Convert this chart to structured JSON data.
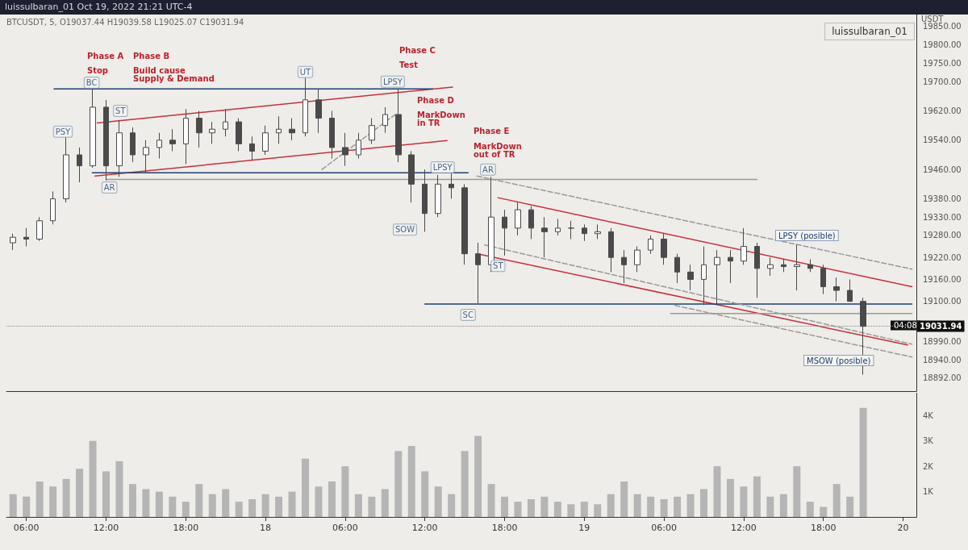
{
  "chart_data": [
    {
      "type": "candlestick",
      "title": "luissulbaran_01 Oct 19, 2022 21:21 UTC-4",
      "subtitle": "BTCUSDT, 5, O19037.44 H19039.58 L19025.07 C19031.94",
      "ylabel": "USDT",
      "color": "#4a4a4a",
      "x": [
        "2022-10-17T05:00",
        "2022-10-17T06:00",
        "2022-10-17T07:00",
        "2022-10-17T08:00",
        "2022-10-17T09:00",
        "2022-10-17T10:00",
        "2022-10-17T11:00",
        "2022-10-17T12:00",
        "2022-10-17T13:00",
        "2022-10-17T14:00",
        "2022-10-17T15:00",
        "2022-10-17T16:00",
        "2022-10-17T17:00",
        "2022-10-17T18:00",
        "2022-10-17T19:00",
        "2022-10-17T20:00",
        "2022-10-17T21:00",
        "2022-10-17T22:00",
        "2022-10-17T23:00",
        "2022-10-18T00:00",
        "2022-10-18T01:00",
        "2022-10-18T02:00",
        "2022-10-18T03:00",
        "2022-10-18T04:00",
        "2022-10-18T05:00",
        "2022-10-18T06:00",
        "2022-10-18T07:00",
        "2022-10-18T08:00",
        "2022-10-18T09:00",
        "2022-10-18T10:00",
        "2022-10-18T11:00",
        "2022-10-18T12:00",
        "2022-10-18T13:00",
        "2022-10-18T14:00",
        "2022-10-18T15:00",
        "2022-10-18T16:00",
        "2022-10-18T17:00",
        "2022-10-18T18:00",
        "2022-10-18T19:00",
        "2022-10-18T20:00",
        "2022-10-18T21:00",
        "2022-10-18T22:00",
        "2022-10-18T23:00",
        "2022-10-19T00:00",
        "2022-10-19T01:00",
        "2022-10-19T02:00",
        "2022-10-19T03:00",
        "2022-10-19T04:00",
        "2022-10-19T05:00",
        "2022-10-19T06:00",
        "2022-10-19T07:00",
        "2022-10-19T08:00",
        "2022-10-19T09:00",
        "2022-10-19T10:00",
        "2022-10-19T11:00",
        "2022-10-19T12:00",
        "2022-10-19T13:00",
        "2022-10-19T14:00",
        "2022-10-19T15:00",
        "2022-10-19T16:00",
        "2022-10-19T17:00",
        "2022-10-19T18:00",
        "2022-10-19T19:00",
        "2022-10-19T20:00",
        "2022-10-19T21:00"
      ],
      "ohlc": [
        [
          19260,
          19285,
          19240,
          19275
        ],
        [
          19275,
          19300,
          19250,
          19270
        ],
        [
          19270,
          19330,
          19265,
          19320
        ],
        [
          19320,
          19400,
          19310,
          19380
        ],
        [
          19380,
          19550,
          19370,
          19500
        ],
        [
          19500,
          19520,
          19425,
          19470
        ],
        [
          19470,
          19680,
          19465,
          19630
        ],
        [
          19630,
          19650,
          19430,
          19470
        ],
        [
          19470,
          19595,
          19440,
          19560
        ],
        [
          19560,
          19575,
          19480,
          19500
        ],
        [
          19500,
          19540,
          19450,
          19520
        ],
        [
          19520,
          19560,
          19490,
          19540
        ],
        [
          19540,
          19570,
          19510,
          19530
        ],
        [
          19530,
          19625,
          19475,
          19600
        ],
        [
          19600,
          19620,
          19520,
          19560
        ],
        [
          19560,
          19590,
          19530,
          19570
        ],
        [
          19570,
          19625,
          19550,
          19590
        ],
        [
          19590,
          19600,
          19510,
          19530
        ],
        [
          19530,
          19550,
          19485,
          19510
        ],
        [
          19510,
          19580,
          19500,
          19560
        ],
        [
          19560,
          19605,
          19530,
          19570
        ],
        [
          19570,
          19600,
          19540,
          19560
        ],
        [
          19560,
          19710,
          19550,
          19650
        ],
        [
          19650,
          19680,
          19560,
          19600
        ],
        [
          19600,
          19620,
          19490,
          19520
        ],
        [
          19520,
          19560,
          19470,
          19500
        ],
        [
          19500,
          19560,
          19490,
          19540
        ],
        [
          19540,
          19600,
          19530,
          19580
        ],
        [
          19580,
          19630,
          19560,
          19610
        ],
        [
          19610,
          19680,
          19480,
          19500
        ],
        [
          19500,
          19510,
          19370,
          19420
        ],
        [
          19420,
          19460,
          19290,
          19340
        ],
        [
          19340,
          19445,
          19330,
          19420
        ],
        [
          19420,
          19450,
          19380,
          19410
        ],
        [
          19410,
          19420,
          19200,
          19230
        ],
        [
          19230,
          19260,
          19095,
          19200
        ],
        [
          19200,
          19440,
          19180,
          19330
        ],
        [
          19330,
          19350,
          19225,
          19300
        ],
        [
          19300,
          19370,
          19280,
          19350
        ],
        [
          19350,
          19360,
          19270,
          19300
        ],
        [
          19300,
          19330,
          19220,
          19290
        ],
        [
          19290,
          19325,
          19280,
          19300
        ],
        [
          19300,
          19320,
          19270,
          19300
        ],
        [
          19300,
          19310,
          19265,
          19285
        ],
        [
          19285,
          19310,
          19270,
          19290
        ],
        [
          19290,
          19300,
          19180,
          19220
        ],
        [
          19220,
          19240,
          19150,
          19200
        ],
        [
          19200,
          19250,
          19180,
          19240
        ],
        [
          19240,
          19280,
          19230,
          19270
        ],
        [
          19270,
          19285,
          19200,
          19220
        ],
        [
          19220,
          19230,
          19150,
          19180
        ],
        [
          19180,
          19200,
          19130,
          19160
        ],
        [
          19160,
          19250,
          19090,
          19200
        ],
        [
          19200,
          19240,
          19090,
          19220
        ],
        [
          19220,
          19240,
          19150,
          19210
        ],
        [
          19210,
          19300,
          19200,
          19250
        ],
        [
          19250,
          19260,
          19110,
          19190
        ],
        [
          19190,
          19220,
          19170,
          19200
        ],
        [
          19200,
          19215,
          19180,
          19195
        ],
        [
          19195,
          19255,
          19130,
          19200
        ],
        [
          19200,
          19215,
          19180,
          19190
        ],
        [
          19190,
          19200,
          19120,
          19140
        ],
        [
          19140,
          19165,
          19100,
          19130
        ],
        [
          19130,
          19160,
          19100,
          19100
        ],
        [
          19100,
          19110,
          18900,
          19031.94
        ]
      ],
      "series": [
        {
          "type": "line",
          "x": [
            "2022-10-17T11:20",
            "2022-10-18T14:05"
          ],
          "values": [
            19587,
            19685
          ],
          "color": "#c8303c",
          "line_style": "solid"
        },
        {
          "type": "line",
          "x": [
            "2022-10-17T11:10",
            "2022-10-18T13:40"
          ],
          "values": [
            19442,
            19539
          ],
          "color": "#c8303c",
          "line_style": "solid"
        },
        {
          "type": "line",
          "x": [
            "2022-10-18T17:30",
            "2022-10-20T00:40"
          ],
          "values": [
            19383,
            19140
          ],
          "color": "#c8303c",
          "line_style": "solid"
        },
        {
          "type": "line",
          "x": [
            "2022-10-18T16:10",
            "2022-10-20T00:20"
          ],
          "values": [
            19228,
            18981
          ],
          "color": "#c8303c",
          "line_style": "solid"
        },
        {
          "type": "line",
          "x": [
            "2022-10-17T08:05",
            "2022-10-18T12:35"
          ],
          "values": [
            19680,
            19680
          ],
          "color": "#1f3f73",
          "line_style": "solid"
        },
        {
          "type": "line",
          "x": [
            "2022-10-17T10:58",
            "2022-10-18T15:15"
          ],
          "values": [
            19451,
            19451
          ],
          "color": "#1f3f73",
          "line_style": "solid"
        },
        {
          "type": "line",
          "x": [
            "2022-10-18T12:00",
            "2022-10-20T00:40"
          ],
          "values": [
            19093,
            19093
          ],
          "color": "#1f3f73",
          "line_style": "solid"
        },
        {
          "type": "line",
          "x": [
            "2022-10-17T12:00",
            "2022-10-19T13:00"
          ],
          "values": [
            19433,
            19433
          ],
          "color": "#9a9a9a",
          "line_style": "solid"
        },
        {
          "type": "line",
          "x": [
            "2022-10-19T06:30",
            "2022-10-20T00:40"
          ],
          "values": [
            19067,
            19067
          ],
          "color": "#9a9a9a",
          "line_style": "solid"
        },
        {
          "type": "line",
          "x": [
            "2022-10-18T15:55",
            "2022-10-20T00:40"
          ],
          "values": [
            19442,
            19188
          ],
          "color": "#9a9a9a",
          "line_style": "dashed"
        },
        {
          "type": "line",
          "x": [
            "2022-10-18T16:30",
            "2022-10-20T00:40"
          ],
          "values": [
            19254,
            18983
          ],
          "color": "#9a9a9a",
          "line_style": "dashed"
        },
        {
          "type": "line",
          "x": [
            "2022-10-19T06:50",
            "2022-10-20T00:40"
          ],
          "values": [
            19089,
            18948
          ],
          "color": "#9a9a9a",
          "line_style": "dashed"
        },
        {
          "type": "line",
          "x": [
            "2022-10-18T04:15",
            "2022-10-18T09:55"
          ],
          "values": [
            19460,
            19614
          ],
          "color": "#9a9a9a",
          "line_style": "dashed"
        }
      ],
      "xlim": [
        "2022-10-17T04:30",
        "2022-10-20T01:00"
      ],
      "ylim": [
        18855,
        19883
      ],
      "yticks": [
        {
          "value": 19850,
          "label": "19850.00"
        },
        {
          "value": 19800,
          "label": "19800.00"
        },
        {
          "value": 19750,
          "label": "19750.00"
        },
        {
          "value": 19700,
          "label": "19700.00"
        },
        {
          "value": 19620,
          "label": "19620.00"
        },
        {
          "value": 19540,
          "label": "19540.00"
        },
        {
          "value": 19460,
          "label": "19460.00"
        },
        {
          "value": 19380,
          "label": "19380.00"
        },
        {
          "value": 19330,
          "label": "19330.00"
        },
        {
          "value": 19280,
          "label": "19280.00"
        },
        {
          "value": 19220,
          "label": "19220.00"
        },
        {
          "value": 19160,
          "label": "19160.00"
        },
        {
          "value": 19100,
          "label": "19100.00"
        },
        {
          "value": 18990,
          "label": "18990.00"
        },
        {
          "value": 18940,
          "label": "18940.00"
        },
        {
          "value": 18892,
          "label": "18892.00"
        }
      ],
      "tick_labels": "y",
      "grid": false,
      "marker": "none",
      "ref_lines": [
        {
          "axis": "y",
          "value": 19031.94,
          "label": "19031.94",
          "color": "#888888",
          "line_style": "dotted"
        }
      ],
      "annotations": [
        "luissulbaran_01",
        "04:08",
        "Phase A",
        "Stop",
        "Phase B",
        "Build cause",
        "Supply & Demand",
        "Phase C",
        "Test",
        "Phase D",
        "MarkDown",
        "in TR",
        "Phase E",
        "MarkDown",
        "out of TR",
        "LPSY (posible)",
        "MSOW (posible)",
        {
          "text": "PSY",
          "x": "2022-10-17T08:45",
          "y": 19563
        },
        {
          "text": "BC",
          "x": "2022-10-17T10:55",
          "y": 19697
        },
        {
          "text": "AR",
          "x": "2022-10-17T12:15",
          "y": 19411
        },
        {
          "text": "ST",
          "x": "2022-10-17T13:05",
          "y": 19620
        },
        {
          "text": "UT",
          "x": "2022-10-18T03:00",
          "y": 19726
        },
        {
          "text": "LPSY",
          "x": "2022-10-18T09:35",
          "y": 19700
        },
        {
          "text": "SOW",
          "x": "2022-10-18T10:30",
          "y": 19296
        },
        {
          "text": "LPSY",
          "x": "2022-10-18T13:20",
          "y": 19466
        },
        {
          "text": "AR",
          "x": "2022-10-18T16:45",
          "y": 19460
        },
        {
          "text": "SC",
          "x": "2022-10-18T15:15",
          "y": 19063
        },
        {
          "text": "ST",
          "x": "2022-10-18T17:30",
          "y": 19197
        }
      ]
    },
    {
      "type": "bar",
      "color": "#b5b5b5",
      "x": [
        "2022-10-17T05:00",
        "2022-10-17T06:00",
        "2022-10-17T07:00",
        "2022-10-17T08:00",
        "2022-10-17T09:00",
        "2022-10-17T10:00",
        "2022-10-17T11:00",
        "2022-10-17T12:00",
        "2022-10-17T13:00",
        "2022-10-17T14:00",
        "2022-10-17T15:00",
        "2022-10-17T16:00",
        "2022-10-17T17:00",
        "2022-10-17T18:00",
        "2022-10-17T19:00",
        "2022-10-17T20:00",
        "2022-10-17T21:00",
        "2022-10-17T22:00",
        "2022-10-17T23:00",
        "2022-10-18T00:00",
        "2022-10-18T01:00",
        "2022-10-18T02:00",
        "2022-10-18T03:00",
        "2022-10-18T04:00",
        "2022-10-18T05:00",
        "2022-10-18T06:00",
        "2022-10-18T07:00",
        "2022-10-18T08:00",
        "2022-10-18T09:00",
        "2022-10-18T10:00",
        "2022-10-18T11:00",
        "2022-10-18T12:00",
        "2022-10-18T13:00",
        "2022-10-18T14:00",
        "2022-10-18T15:00",
        "2022-10-18T16:00",
        "2022-10-18T17:00",
        "2022-10-18T18:00",
        "2022-10-18T19:00",
        "2022-10-18T20:00",
        "2022-10-18T21:00",
        "2022-10-18T22:00",
        "2022-10-18T23:00",
        "2022-10-19T00:00",
        "2022-10-19T01:00",
        "2022-10-19T02:00",
        "2022-10-19T03:00",
        "2022-10-19T04:00",
        "2022-10-19T05:00",
        "2022-10-19T06:00",
        "2022-10-19T07:00",
        "2022-10-19T08:00",
        "2022-10-19T09:00",
        "2022-10-19T10:00",
        "2022-10-19T11:00",
        "2022-10-19T12:00",
        "2022-10-19T13:00",
        "2022-10-19T14:00",
        "2022-10-19T15:00",
        "2022-10-19T16:00",
        "2022-10-19T17:00",
        "2022-10-19T18:00",
        "2022-10-19T19:00",
        "2022-10-19T20:00",
        "2022-10-19T21:00"
      ],
      "values": [
        900,
        800,
        1400,
        1200,
        1500,
        1900,
        3000,
        1800,
        2200,
        1300,
        1100,
        1000,
        800,
        600,
        1300,
        900,
        1100,
        600,
        700,
        900,
        800,
        1000,
        2300,
        1200,
        1400,
        2000,
        900,
        800,
        1100,
        2600,
        2800,
        1800,
        1200,
        900,
        2600,
        3200,
        1300,
        800,
        600,
        700,
        800,
        600,
        500,
        600,
        500,
        900,
        1400,
        900,
        800,
        700,
        800,
        900,
        1100,
        2000,
        1500,
        1200,
        1600,
        800,
        900,
        2000,
        600,
        400,
        1300,
        800,
        4300
      ],
      "xlim": [
        "2022-10-17T04:30",
        "2022-10-20T01:00"
      ],
      "xticks": [
        {
          "value": "2022-10-17T06:00",
          "label": "06:00"
        },
        {
          "value": "2022-10-17T12:00",
          "label": "12:00"
        },
        {
          "value": "2022-10-17T18:00",
          "label": "18:00"
        },
        {
          "value": "2022-10-18T00:00",
          "label": "18"
        },
        {
          "value": "2022-10-18T06:00",
          "label": "06:00"
        },
        {
          "value": "2022-10-18T12:00",
          "label": "12:00"
        },
        {
          "value": "2022-10-18T18:00",
          "label": "18:00"
        },
        {
          "value": "2022-10-19T00:00",
          "label": "19"
        },
        {
          "value": "2022-10-19T06:00",
          "label": "06:00"
        },
        {
          "value": "2022-10-19T12:00",
          "label": "12:00"
        },
        {
          "value": "2022-10-19T18:00",
          "label": "18:00"
        },
        {
          "value": "2022-10-20T00:00",
          "label": "20"
        }
      ],
      "ylim": [
        0,
        4900
      ],
      "yticks": [
        {
          "value": 1000,
          "label": "1K"
        },
        {
          "value": 2000,
          "label": "2K"
        },
        {
          "value": 3000,
          "label": "3K"
        },
        {
          "value": 4000,
          "label": "4K"
        }
      ],
      "grid": false
    }
  ]
}
